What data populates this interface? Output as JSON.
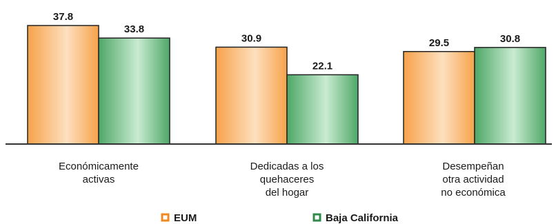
{
  "chart_data": {
    "type": "bar",
    "categories": [
      [
        "Económicamente",
        "activas"
      ],
      [
        "Dedicadas a los",
        "quehaceres",
        "del hogar"
      ],
      [
        "Desempeñan",
        "otra actividad",
        "no económica"
      ]
    ],
    "series": [
      {
        "name": "EUM",
        "values": [
          37.8,
          30.9,
          29.5
        ],
        "value_labels": [
          "37.8",
          "30.9",
          "29.5"
        ],
        "color": "#f7a24a",
        "color_light": "#fde0bf",
        "legend_color": "#f08a1c"
      },
      {
        "name": "Baja California",
        "values": [
          33.8,
          22.1,
          30.8
        ],
        "value_labels": [
          "33.8",
          "22.1",
          "30.8"
        ],
        "color": "#4fa768",
        "color_light": "#c9ecd1",
        "legend_color": "#2f8a4c"
      }
    ],
    "ylim": [
      0,
      40
    ],
    "grid": false,
    "legend_position": "bottom"
  }
}
